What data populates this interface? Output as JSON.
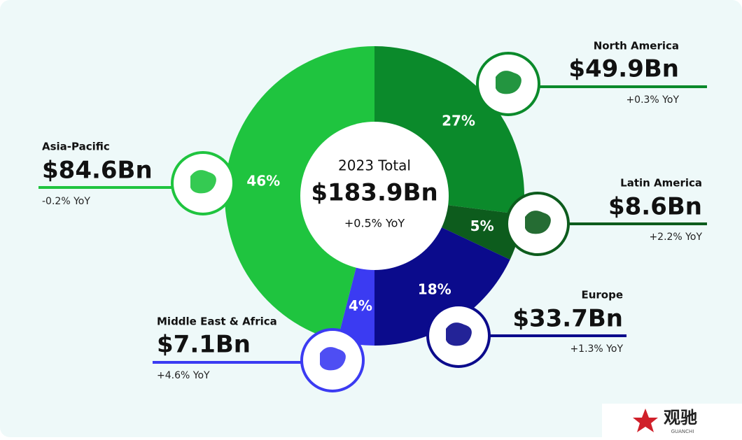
{
  "chart_data": {
    "type": "donut",
    "center_title": "2023 Total",
    "center_value": "$183.9Bn",
    "center_change": "+0.5% YoY",
    "categories": [
      "North America",
      "Latin America",
      "Europe",
      "Middle East & Africa",
      "Asia-Pacific"
    ],
    "values": [
      27,
      5,
      18,
      4,
      46
    ],
    "value_labels": [
      "27%",
      "5%",
      "18%",
      "4%",
      "46%"
    ],
    "amount_labels": [
      "$49.9Bn",
      "$8.6Bn",
      "$33.7Bn",
      "$7.1Bn",
      "$84.6Bn"
    ],
    "change_labels": [
      "+0.3% YoY",
      "+2.2% YoY",
      "+1.3% YoY",
      "+4.6% YoY",
      "-0.2% YoY"
    ],
    "colors": [
      "#0b8a2b",
      "#0d5c1d",
      "#0b0b8c",
      "#3b3bf2",
      "#1fc43f"
    ]
  },
  "watermark": {
    "name": "观驰",
    "sub": "GUANCHI"
  }
}
